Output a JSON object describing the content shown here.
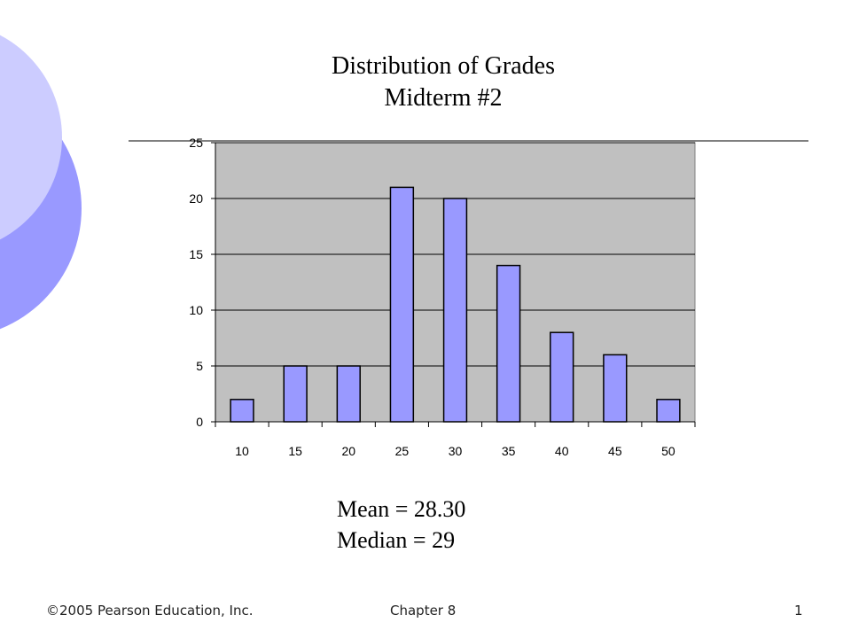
{
  "slide": {
    "title_line1": "Distribution of Grades",
    "title_line2": "Midterm #2",
    "mean_text": "Mean = 28.30",
    "median_text": "Median = 29",
    "footer_left": "©2005 Pearson Education, Inc.",
    "footer_center": "Chapter 8",
    "footer_right": "1"
  },
  "colors": {
    "bar_fill": "#9999ff",
    "plot_bg": "#c0c0c0",
    "decor_light": "#ccccff",
    "decor_dark": "#9999ff"
  },
  "chart_data": {
    "type": "bar",
    "title": "Distribution of Grades Midterm #2",
    "categories": [
      "10",
      "15",
      "20",
      "25",
      "30",
      "35",
      "40",
      "45",
      "50"
    ],
    "values": [
      2,
      5,
      5,
      21,
      20,
      14,
      8,
      6,
      2
    ],
    "ylim": [
      0,
      25
    ],
    "yticks": [
      0,
      5,
      10,
      15,
      20,
      25
    ],
    "grid": true,
    "legend": "none"
  }
}
